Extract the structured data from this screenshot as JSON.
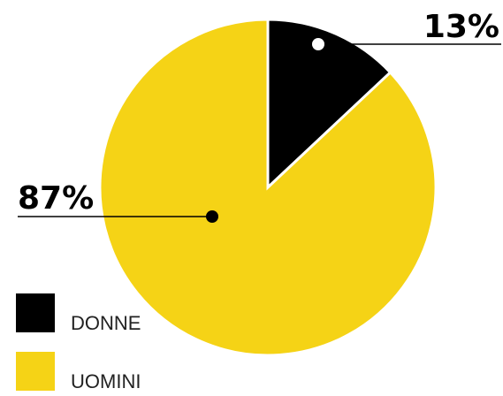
{
  "chart_data": {
    "type": "pie",
    "categories": [
      "DONNE",
      "UOMINI"
    ],
    "values": [
      13,
      87
    ],
    "value_labels": [
      "13%",
      "87%"
    ],
    "colors": [
      "#000000",
      "#f5d316"
    ]
  }
}
